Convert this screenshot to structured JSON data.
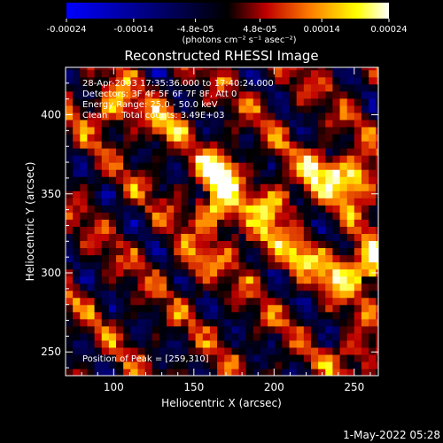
{
  "chart_data": {
    "type": "heatmap",
    "title": "Reconstructed RHESSI Image",
    "xlabel": "Heliocentric X (arcsec)",
    "ylabel": "Heliocentric Y (arcsec)",
    "xlim": [
      70,
      265
    ],
    "ylim": [
      235,
      430
    ],
    "x_ticks": [
      100,
      150,
      200,
      250
    ],
    "y_ticks": [
      250,
      300,
      350,
      400
    ],
    "colorbar": {
      "range": [
        -0.00024,
        0.00024
      ],
      "tick_values": [
        -0.00024,
        -0.00014,
        -4.8e-05,
        4.8e-05,
        0.00014,
        0.00024
      ],
      "tick_labels": [
        "-0.00024",
        "-0.00014",
        "-4.8e-05",
        "4.8e-05",
        "0.00014",
        "0.00024"
      ],
      "units_label": "(photons cm⁻² s⁻¹ asec⁻²)",
      "colors": [
        "#0000ff",
        "#000000",
        "#c00000",
        "#ff8000",
        "#ffff00",
        "#ffffff"
      ]
    },
    "annotations": [
      "28-Apr-2003 17:35:36.000 to 17:40:24.000",
      "Detectors: 3F 4F 5F 6F 7F 8F, Att 0",
      "Energy Range: 25.0 - 50.0 keV",
      "Clean     Total counts: 3.49E+03"
    ],
    "peak_label": "Position of Peak = [259,310]",
    "peak_position": [
      259,
      310
    ],
    "bright_regions": [
      {
        "x": 165,
        "y": 365,
        "intensity": 0.00024
      },
      {
        "x": 165,
        "y": 340,
        "intensity": 0.00022
      },
      {
        "x": 230,
        "y": 365,
        "intensity": 0.0002
      },
      {
        "x": 250,
        "y": 358,
        "intensity": 0.00024
      },
      {
        "x": 200,
        "y": 345,
        "intensity": 0.00016
      },
      {
        "x": 100,
        "y": 405,
        "intensity": 0.00018
      },
      {
        "x": 130,
        "y": 395,
        "intensity": 0.00012
      },
      {
        "x": 260,
        "y": 305,
        "intensity": 0.00024
      },
      {
        "x": 215,
        "y": 310,
        "intensity": 0.00014
      },
      {
        "x": 240,
        "y": 300,
        "intensity": 0.00015
      },
      {
        "x": 190,
        "y": 320,
        "intensity": 0.00012
      },
      {
        "x": 150,
        "y": 305,
        "intensity": 0.0001
      },
      {
        "x": 250,
        "y": 245,
        "intensity": 0.00013
      }
    ],
    "background_level": 2e-05
  },
  "footer": {
    "date_stamp": "1-May-2022 05:28"
  }
}
